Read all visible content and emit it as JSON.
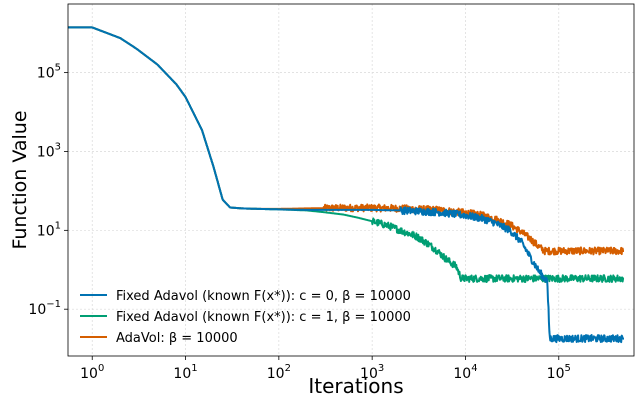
{
  "chart_data": {
    "type": "line",
    "title": "",
    "xlabel": "Iterations",
    "ylabel": "Function Value",
    "xscale": "log",
    "yscale": "log",
    "xlim": [
      0.55,
      640000
    ],
    "ylim": [
      0.0065,
      5500000
    ],
    "grid": true,
    "legend_position": "lower-left",
    "x_ticks": [
      {
        "value": 1,
        "label": "10^0"
      },
      {
        "value": 10,
        "label": "10^1"
      },
      {
        "value": 100,
        "label": "10^2"
      },
      {
        "value": 1000,
        "label": "10^3"
      },
      {
        "value": 10000,
        "label": "10^4"
      },
      {
        "value": 100000,
        "label": "10^5"
      }
    ],
    "y_ticks": [
      {
        "value": 0.1,
        "label": "10^−1"
      },
      {
        "value": 10,
        "label": "10^1"
      },
      {
        "value": 1000,
        "label": "10^3"
      },
      {
        "value": 100000,
        "label": "10^5"
      }
    ],
    "series": [
      {
        "name": "Fixed Adavol (known F(x*)): c = 0, β = 10000",
        "color": "#0072b2",
        "x": [
          0.55,
          1,
          2,
          3,
          5,
          8,
          10,
          15,
          20,
          25,
          30,
          40,
          60,
          100,
          200,
          500,
          1000,
          2000,
          5000,
          10000,
          15000,
          20000,
          30000,
          40000,
          50000,
          60000,
          70000,
          75000,
          80000,
          200000,
          500000
        ],
        "y": [
          1400000,
          1400000,
          750000,
          400000,
          160000,
          50000,
          24000,
          3500,
          400,
          60,
          38,
          36,
          35,
          34,
          33,
          33,
          33,
          32,
          29,
          24,
          20,
          16,
          10,
          5,
          2,
          1,
          0.6,
          0.55,
          0.018,
          0.018,
          0.018
        ],
        "noisy_from": 2000
      },
      {
        "name": "Fixed Adavol (known F(x*)): c = 1, β = 10000",
        "color": "#009e73",
        "x": [
          0.55,
          1,
          2,
          3,
          5,
          8,
          10,
          15,
          20,
          25,
          30,
          40,
          60,
          100,
          200,
          300,
          500,
          700,
          1000,
          1500,
          2000,
          3000,
          4000,
          5000,
          6000,
          7000,
          8000,
          9000,
          10000,
          100000,
          500000
        ],
        "y": [
          1400000,
          1400000,
          750000,
          400000,
          160000,
          50000,
          24000,
          3500,
          400,
          60,
          38,
          36,
          35,
          34,
          32,
          29,
          25,
          21,
          17,
          13,
          10,
          7,
          4.5,
          3,
          2,
          1.5,
          1.2,
          0.6,
          0.6,
          0.6,
          0.6
        ],
        "noisy_from": 1000
      },
      {
        "name": "AdaVol: β = 10000",
        "color": "#d55e00",
        "x": [
          0.55,
          1,
          2,
          3,
          5,
          8,
          10,
          15,
          20,
          25,
          30,
          40,
          60,
          100,
          200,
          500,
          1000,
          2000,
          5000,
          10000,
          15000,
          20000,
          30000,
          40000,
          50000,
          60000,
          70000,
          100000,
          200000,
          500000
        ],
        "y": [
          1400000,
          1400000,
          750000,
          400000,
          160000,
          50000,
          24000,
          3500,
          400,
          60,
          38,
          36,
          35,
          35,
          36,
          37,
          37,
          36,
          33,
          28,
          24,
          20,
          14,
          9,
          6,
          4,
          3,
          3,
          3,
          3
        ],
        "noisy_from": 300
      }
    ]
  }
}
